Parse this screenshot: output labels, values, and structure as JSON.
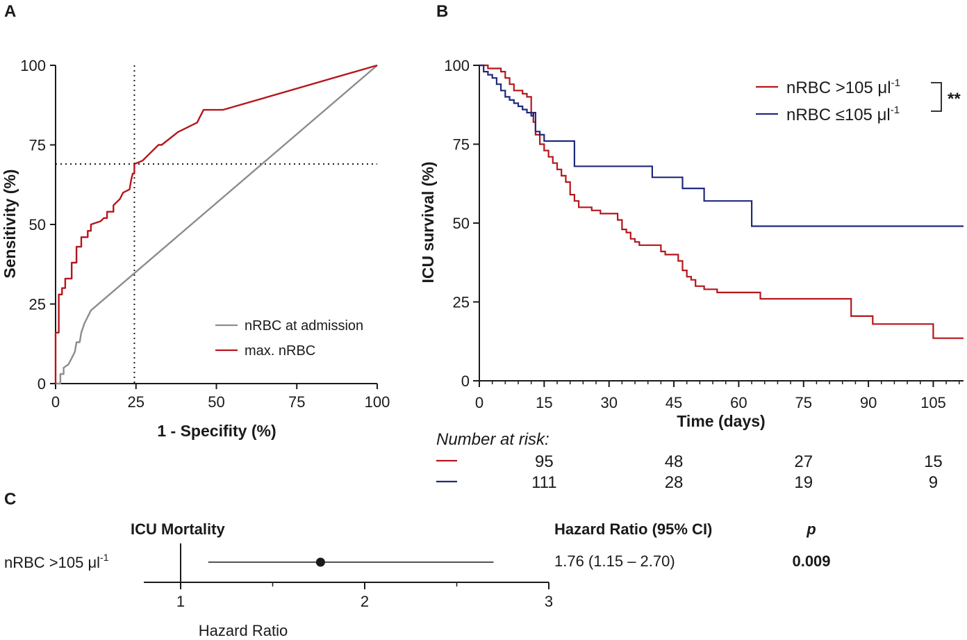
{
  "panels": {
    "a": "A",
    "b": "B",
    "c": "C"
  },
  "colors": {
    "red": "#b5161b",
    "blue": "#1f2a7d",
    "gray": "#8c8c8c",
    "black": "#1a1a1a"
  },
  "chart_data": [
    {
      "id": "roc",
      "type": "line",
      "title": "",
      "xlabel": "1 - Specifity (%)",
      "ylabel": "Sensitivity (%)",
      "xlim": [
        0,
        100
      ],
      "ylim": [
        0,
        100
      ],
      "xticks": [
        "0",
        "25",
        "50",
        "75",
        "100"
      ],
      "yticks": [
        "0",
        "25",
        "50",
        "75",
        "100"
      ],
      "cutoff": {
        "x": 24.5,
        "y": 69
      },
      "legend": [
        "nRBC at admission",
        "max. nRBC"
      ],
      "series": [
        {
          "name": "nRBC at admission",
          "color": "gray",
          "points": [
            [
              0,
              0
            ],
            [
              1.5,
              0
            ],
            [
              1.5,
              3
            ],
            [
              2.5,
              3
            ],
            [
              2.5,
              5
            ],
            [
              4,
              6
            ],
            [
              5,
              8
            ],
            [
              6,
              10
            ],
            [
              6.5,
              13
            ],
            [
              7.5,
              13
            ],
            [
              8,
              16
            ],
            [
              9,
              19
            ],
            [
              10,
              21
            ],
            [
              11,
              23
            ],
            [
              100,
              100
            ]
          ]
        },
        {
          "name": "max. nRBC",
          "color": "red",
          "points": [
            [
              0,
              0
            ],
            [
              0,
              16
            ],
            [
              1,
              16
            ],
            [
              1,
              28
            ],
            [
              2,
              28
            ],
            [
              2,
              30
            ],
            [
              3,
              30
            ],
            [
              3,
              33
            ],
            [
              5,
              33
            ],
            [
              5,
              38
            ],
            [
              6.5,
              38
            ],
            [
              6.5,
              43
            ],
            [
              8,
              43
            ],
            [
              8,
              46
            ],
            [
              10,
              46
            ],
            [
              10,
              48
            ],
            [
              11,
              48
            ],
            [
              11,
              50
            ],
            [
              14,
              51
            ],
            [
              15,
              52
            ],
            [
              16,
              52
            ],
            [
              16,
              54
            ],
            [
              18,
              54
            ],
            [
              18,
              56
            ],
            [
              20,
              58
            ],
            [
              21,
              60
            ],
            [
              23,
              61
            ],
            [
              23.5,
              64
            ],
            [
              24,
              66
            ],
            [
              24.5,
              66
            ],
            [
              24.5,
              69
            ],
            [
              27,
              70
            ],
            [
              29,
              72
            ],
            [
              32,
              75
            ],
            [
              33,
              75
            ],
            [
              38,
              79
            ],
            [
              44,
              82
            ],
            [
              46,
              86
            ],
            [
              52,
              86
            ],
            [
              100,
              100
            ]
          ]
        }
      ]
    },
    {
      "id": "km",
      "type": "line",
      "title": "",
      "xlabel": "Time (days)",
      "ylabel": "ICU survival (%)",
      "xlim": [
        0,
        112
      ],
      "ylim": [
        0,
        100
      ],
      "xticks": [
        "0",
        "15",
        "30",
        "45",
        "60",
        "75",
        "90",
        "105"
      ],
      "yticks": [
        "0",
        "25",
        "50",
        "75",
        "100"
      ],
      "significance": "**",
      "legend": [
        {
          "label": "nRBC >105 μl",
          "sup": "-1",
          "color": "red"
        },
        {
          "label": "nRBC ≤105 μl",
          "sup": "-1",
          "color": "blue"
        }
      ],
      "series": [
        {
          "name": "nRBC >105 μl-1",
          "color": "red",
          "points": [
            [
              0,
              100
            ],
            [
              2,
              100
            ],
            [
              2,
              99
            ],
            [
              5,
              99
            ],
            [
              5,
              98
            ],
            [
              6,
              98
            ],
            [
              6,
              96
            ],
            [
              7,
              96
            ],
            [
              7,
              94
            ],
            [
              8,
              94
            ],
            [
              8,
              92
            ],
            [
              10,
              92
            ],
            [
              10,
              91
            ],
            [
              11,
              91
            ],
            [
              11,
              90
            ],
            [
              12,
              90
            ],
            [
              12,
              85
            ],
            [
              12.5,
              85
            ],
            [
              12.5,
              82
            ],
            [
              13,
              82
            ],
            [
              13,
              78
            ],
            [
              14,
              78
            ],
            [
              14,
              75
            ],
            [
              15,
              75
            ],
            [
              15,
              73
            ],
            [
              16,
              73
            ],
            [
              16,
              71
            ],
            [
              17,
              71
            ],
            [
              17,
              69
            ],
            [
              18,
              69
            ],
            [
              18,
              67
            ],
            [
              19,
              67
            ],
            [
              19,
              65
            ],
            [
              20,
              65
            ],
            [
              20,
              63
            ],
            [
              21,
              63
            ],
            [
              21,
              59
            ],
            [
              22,
              59
            ],
            [
              22,
              57
            ],
            [
              23,
              57
            ],
            [
              23,
              55
            ],
            [
              26,
              55
            ],
            [
              26,
              54
            ],
            [
              28,
              54
            ],
            [
              28,
              53
            ],
            [
              32,
              53
            ],
            [
              32,
              51
            ],
            [
              33,
              51
            ],
            [
              33,
              48
            ],
            [
              34,
              48
            ],
            [
              34,
              47
            ],
            [
              35,
              47
            ],
            [
              35,
              45
            ],
            [
              36,
              45
            ],
            [
              36,
              44
            ],
            [
              37,
              44
            ],
            [
              37,
              43
            ],
            [
              42,
              43
            ],
            [
              42,
              41
            ],
            [
              43,
              41
            ],
            [
              43,
              40
            ],
            [
              46,
              40
            ],
            [
              46,
              38
            ],
            [
              47,
              38
            ],
            [
              47,
              35
            ],
            [
              48,
              35
            ],
            [
              48,
              33
            ],
            [
              49,
              33
            ],
            [
              49,
              32
            ],
            [
              50,
              32
            ],
            [
              50,
              30
            ],
            [
              52,
              30
            ],
            [
              52,
              29
            ],
            [
              55,
              29
            ],
            [
              55,
              28
            ],
            [
              65,
              28
            ],
            [
              65,
              26
            ],
            [
              86,
              26
            ],
            [
              86,
              20.5
            ],
            [
              91,
              20.5
            ],
            [
              91,
              18
            ],
            [
              105,
              18
            ],
            [
              105,
              13.5
            ],
            [
              112,
              13.5
            ]
          ]
        },
        {
          "name": "nRBC ≤105 μl-1",
          "color": "blue",
          "points": [
            [
              0,
              100
            ],
            [
              1,
              100
            ],
            [
              1,
              98
            ],
            [
              2,
              98
            ],
            [
              2,
              97
            ],
            [
              3,
              97
            ],
            [
              3,
              96
            ],
            [
              4,
              96
            ],
            [
              4,
              94
            ],
            [
              5,
              94
            ],
            [
              5,
              92
            ],
            [
              6,
              92
            ],
            [
              6,
              90
            ],
            [
              7,
              90
            ],
            [
              7,
              89
            ],
            [
              8,
              89
            ],
            [
              8,
              88
            ],
            [
              9,
              88
            ],
            [
              9,
              87
            ],
            [
              10,
              87
            ],
            [
              10,
              86
            ],
            [
              11,
              86
            ],
            [
              11,
              85
            ],
            [
              12,
              85
            ],
            [
              12,
              84
            ],
            [
              12.5,
              84
            ],
            [
              12.5,
              85
            ],
            [
              13,
              85
            ],
            [
              13,
              79
            ],
            [
              14,
              79
            ],
            [
              14,
              78
            ],
            [
              15,
              78
            ],
            [
              15,
              76
            ],
            [
              22,
              76
            ],
            [
              22,
              68
            ],
            [
              40,
              68
            ],
            [
              40,
              64.5
            ],
            [
              47,
              64.5
            ],
            [
              47,
              61
            ],
            [
              52,
              61
            ],
            [
              52,
              57
            ],
            [
              63,
              57
            ],
            [
              63,
              49
            ],
            [
              112,
              49
            ]
          ]
        }
      ],
      "risk_table": {
        "title": "Number at risk:",
        "columns_at": [
          15,
          45,
          75,
          105
        ],
        "rows": [
          {
            "color": "red",
            "values": [
              "95",
              "48",
              "27",
              "15"
            ]
          },
          {
            "color": "blue",
            "values": [
              "111",
              "28",
              "19",
              "9"
            ]
          }
        ]
      }
    },
    {
      "id": "forest",
      "type": "scatter",
      "title": "",
      "xlabel": "Hazard  Ratio",
      "xlim": [
        0.8,
        3
      ],
      "xticks": [
        "1",
        "2",
        "3"
      ],
      "headers": {
        "outcome": "ICU Mortality",
        "hr": "Hazard Ratio (95% CI)",
        "p": "p"
      },
      "rows": [
        {
          "label": "nRBC >105  μl",
          "sup": "-1",
          "hr": 1.76,
          "ci_low": 1.15,
          "ci_high": 2.7,
          "hr_text": "1.76 (1.15 – 2.70)",
          "p_text": "0.009"
        }
      ]
    }
  ]
}
